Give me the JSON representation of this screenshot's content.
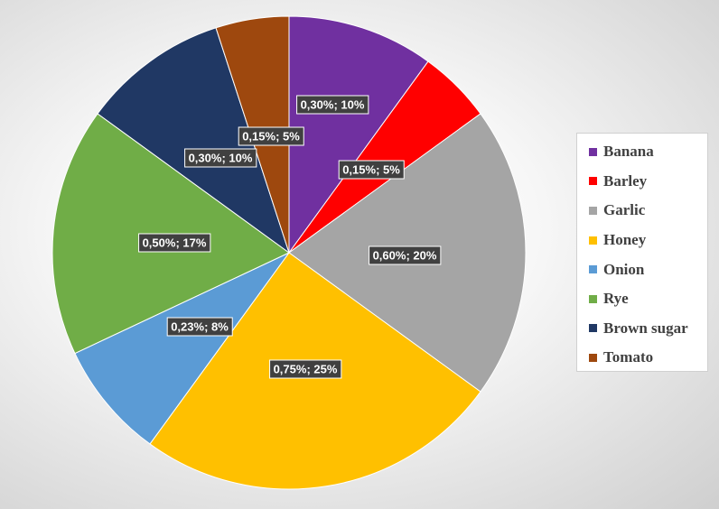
{
  "chart_data": {
    "type": "pie",
    "start_angle_deg": 0,
    "direction": "clockwise",
    "legend_position": "right",
    "slices": [
      {
        "name": "Banana",
        "value": 0.3,
        "percent": 10,
        "label": "0,30%; 10%",
        "color": "#7030A0"
      },
      {
        "name": "Barley",
        "value": 0.15,
        "percent": 5,
        "label": "0,15%; 5%",
        "color": "#FF0000"
      },
      {
        "name": "Garlic",
        "value": 0.6,
        "percent": 20,
        "label": "0,60%; 20%",
        "color": "#A5A5A5"
      },
      {
        "name": "Honey",
        "value": 0.75,
        "percent": 25,
        "label": "0,75%; 25%",
        "color": "#FFC000"
      },
      {
        "name": "Onion",
        "value": 0.23,
        "percent": 8,
        "label": "0,23%; 8%",
        "color": "#5B9BD5"
      },
      {
        "name": "Rye",
        "value": 0.5,
        "percent": 17,
        "label": "0,50%; 17%",
        "color": "#70AD47"
      },
      {
        "name": "Brown sugar",
        "value": 0.3,
        "percent": 10,
        "label": "0,30%; 10%",
        "color": "#203864"
      },
      {
        "name": "Tomato",
        "value": 0.15,
        "percent": 5,
        "label": "0,15%; 5%",
        "color": "#9E480E"
      }
    ]
  }
}
